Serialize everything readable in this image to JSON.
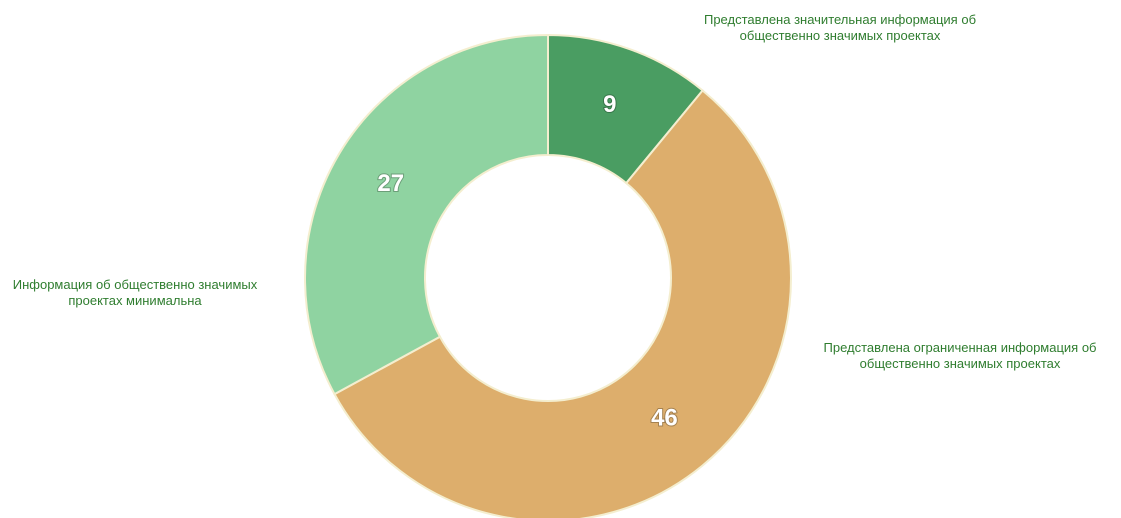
{
  "chart_data": {
    "type": "donut",
    "categories": [
      "Представлена значительная информация об общественно значимых проектах",
      "Представлена ограниченная информация об общественно значимых проектах",
      "Информация об общественно значимых проектах минимальна"
    ],
    "values": [
      9,
      46,
      27
    ],
    "colors": [
      "#4a9d62",
      "#ddae6c",
      "#8fd3a1"
    ]
  }
}
